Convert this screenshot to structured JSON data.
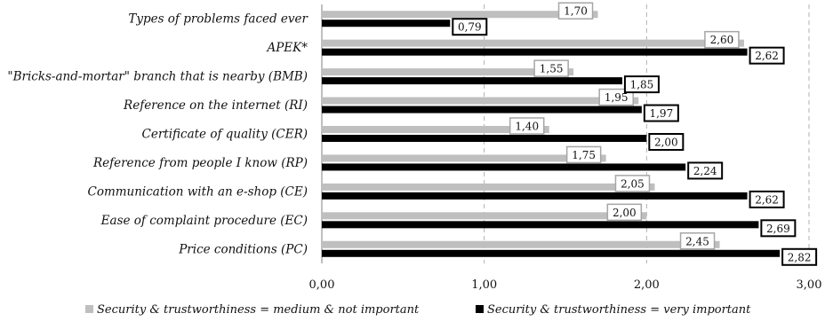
{
  "chart_data": {
    "type": "bar",
    "orientation": "horizontal",
    "categories": [
      "Types of problems faced ever",
      "APEK*",
      "\"Bricks-and-mortar\" branch that is nearby (BMB)",
      "Reference on the internet (RI)",
      "Certificate of quality (CER)",
      "Reference from people I know (RP)",
      "Communication with an e-shop (CE)",
      "Ease of complaint procedure (EC)",
      "Price conditions (PC)"
    ],
    "series": [
      {
        "name": "Security & trustworthiness = medium & not important",
        "color": "#bfbfbf",
        "values": [
          1.7,
          2.6,
          1.55,
          1.95,
          1.4,
          1.75,
          2.05,
          2.0,
          2.45
        ],
        "labels": [
          "1,70",
          "2,60",
          "1,55",
          "1,95",
          "1,40",
          "1,75",
          "2,05",
          "2,00",
          "2,45"
        ]
      },
      {
        "name": "Security & trustworthiness = very important",
        "color": "#000000",
        "values": [
          0.79,
          2.62,
          1.85,
          1.97,
          2.0,
          2.24,
          2.62,
          2.69,
          2.82
        ],
        "labels": [
          "0,79",
          "2,62",
          "1,85",
          "1,97",
          "2,00",
          "2,24",
          "2,62",
          "2,69",
          "2,82"
        ]
      }
    ],
    "xlim": [
      0,
      3
    ],
    "xticks": [
      0,
      1,
      2,
      3
    ],
    "xtick_labels": [
      "0,00",
      "1,00",
      "2,00",
      "3,00"
    ],
    "grid": "vertical dashed",
    "legend_position": "bottom",
    "title": "",
    "xlabel": "",
    "ylabel": ""
  }
}
